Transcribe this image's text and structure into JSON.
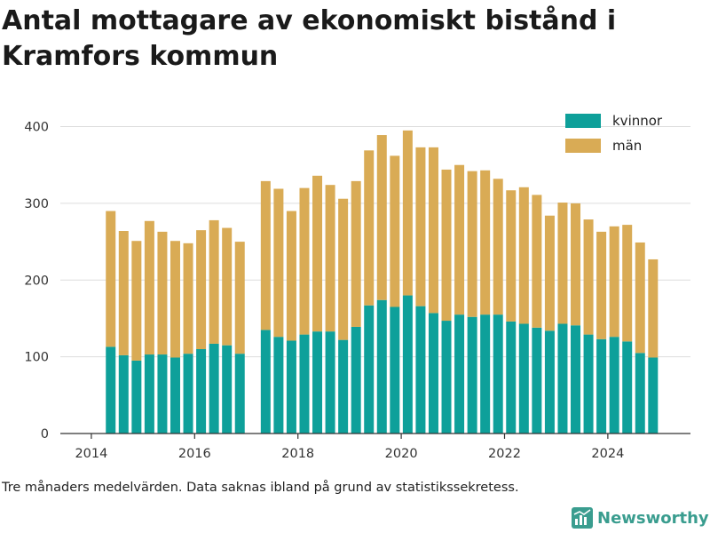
{
  "title": "Antal mottagare av ekonomiskt bistånd i Kramfors kommun",
  "footnote": "Tre månaders medelvärden. Data saknas ibland på grund av statistikssekretess.",
  "brand": "Newsworthy",
  "colors": {
    "kvinnor": "#0ea09a",
    "man": "#d9ab55",
    "grid": "#dddddd",
    "axis": "#333333"
  },
  "chart_data": {
    "type": "bar",
    "stacked": true,
    "legend_position": "top-right",
    "grid": true,
    "xlim": [
      2013.4,
      2025.6
    ],
    "ylim": [
      0,
      440
    ],
    "x_ticks": [
      2014,
      2016,
      2018,
      2020,
      2022,
      2024
    ],
    "y_ticks": [
      0,
      100,
      200,
      300,
      400
    ],
    "x": [
      2014.375,
      2014.625,
      2014.875,
      2015.125,
      2015.375,
      2015.625,
      2015.875,
      2016.125,
      2016.375,
      2016.625,
      2016.875,
      2017.375,
      2017.625,
      2017.875,
      2018.125,
      2018.375,
      2018.625,
      2018.875,
      2019.125,
      2019.375,
      2019.625,
      2019.875,
      2020.125,
      2020.375,
      2020.625,
      2020.875,
      2021.125,
      2021.375,
      2021.625,
      2021.875,
      2022.125,
      2022.375,
      2022.625,
      2022.875,
      2023.125,
      2023.375,
      2023.625,
      2023.875,
      2024.125,
      2024.375,
      2024.625,
      2024.875
    ],
    "series": [
      {
        "name": "kvinnor",
        "values": [
          113,
          102,
          95,
          103,
          103,
          99,
          104,
          110,
          117,
          115,
          104,
          135,
          126,
          121,
          129,
          133,
          133,
          122,
          139,
          167,
          174,
          165,
          180,
          166,
          157,
          147,
          155,
          152,
          155,
          155,
          146,
          143,
          138,
          134,
          143,
          141,
          129,
          123,
          126,
          120,
          105,
          99
        ]
      },
      {
        "name": "män",
        "values": [
          177,
          162,
          156,
          174,
          160,
          152,
          144,
          155,
          161,
          153,
          146,
          194,
          193,
          169,
          191,
          203,
          191,
          184,
          190,
          202,
          215,
          197,
          215,
          207,
          216,
          197,
          195,
          190,
          188,
          177,
          171,
          178,
          173,
          150,
          158,
          159,
          150,
          140,
          144,
          152,
          144,
          128
        ]
      }
    ]
  }
}
